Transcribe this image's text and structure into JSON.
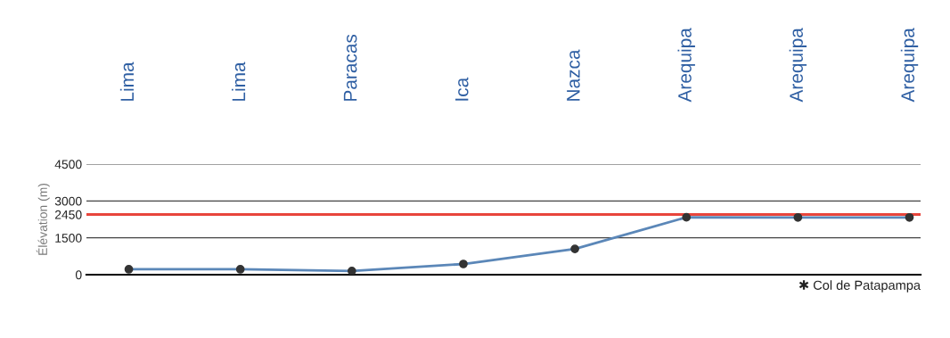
{
  "chart_data": {
    "type": "line",
    "ylabel": "Élévation (m)",
    "categories": [
      "Lima",
      "Lima",
      "Paracas",
      "Ica",
      "Nazca",
      "Arequipa",
      "Arequipa",
      "Arequipa"
    ],
    "series": [
      {
        "color": "#5b87b8",
        "values": [
          220,
          220,
          150,
          435,
          1050,
          2335,
          2330,
          2330
        ]
      }
    ],
    "marker": "circle",
    "line_style": "solid",
    "grid": "y",
    "legend": false,
    "ylim": [
      0,
      4500
    ],
    "yticks": [
      0,
      1500,
      2450,
      3000,
      4500
    ],
    "ref_lines": [
      {
        "axis": "y",
        "value": 2450,
        "color": "#e8453c"
      }
    ],
    "annotations": [
      "✱ Col de Patapampa"
    ]
  }
}
